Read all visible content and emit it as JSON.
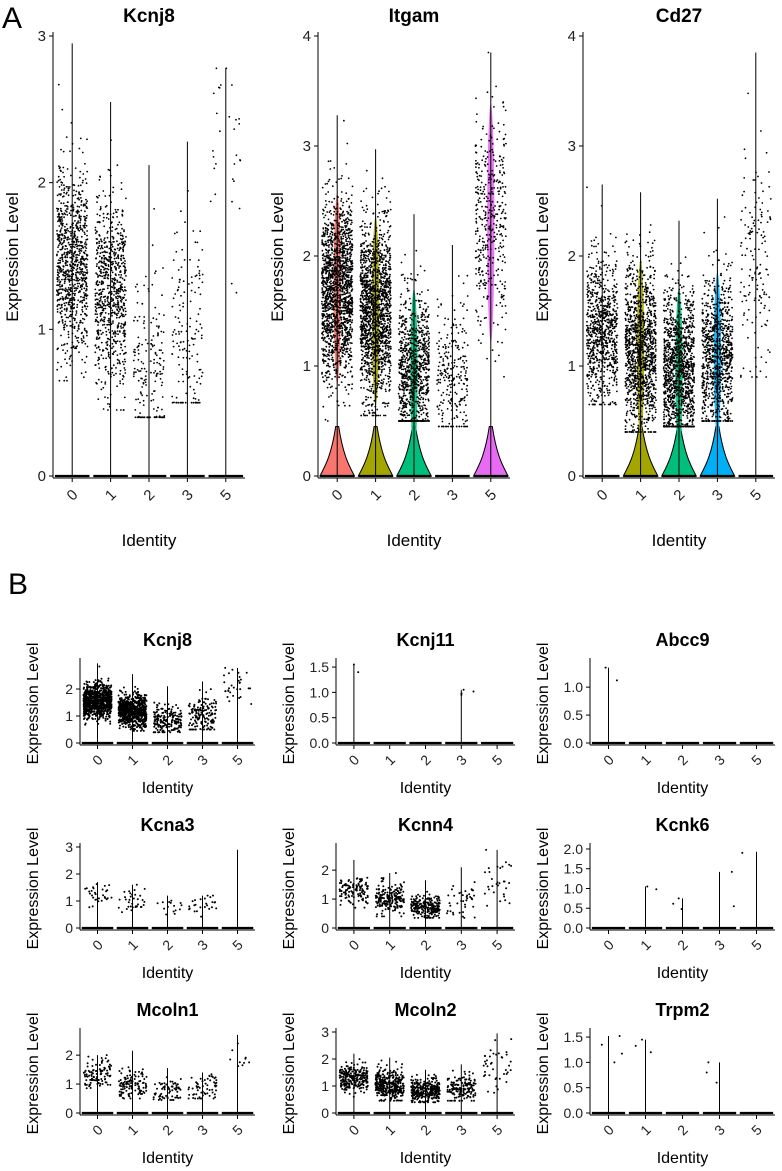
{
  "panels": [
    {
      "label": "A"
    },
    {
      "label": "B"
    }
  ],
  "colors": {
    "identity_0": "#F8766D",
    "identity_1": "#A3A500",
    "identity_2": "#00BF7D",
    "identity_3": "#00B0F6",
    "identity_5": "#E76BF3"
  },
  "chart_data": [
    {
      "panel": "A",
      "type": "violin",
      "title": "Kcnj8",
      "xlabel": "Identity",
      "ylabel": "Expression Level",
      "categories": [
        "0",
        "1",
        "2",
        "3",
        "5"
      ],
      "ylim": [
        0,
        3.0
      ],
      "yticks": [
        0,
        1,
        2,
        3
      ],
      "zero_violin": [
        false,
        false,
        false,
        false,
        false
      ],
      "nonzero_violin": [
        false,
        false,
        false,
        false,
        false
      ],
      "point_center": [
        1.45,
        1.25,
        0.8,
        0.95,
        2.0
      ],
      "point_spread": [
        0.32,
        0.32,
        0.3,
        0.38,
        0.4
      ],
      "point_max": [
        2.95,
        2.55,
        2.12,
        2.28,
        2.78
      ],
      "point_min": [
        0.65,
        0.45,
        0.4,
        0.5,
        1.25
      ],
      "n_points": [
        900,
        750,
        180,
        150,
        30
      ]
    },
    {
      "panel": "A",
      "type": "violin",
      "title": "Itgam",
      "xlabel": "Identity",
      "ylabel": "Expression Level",
      "categories": [
        "0",
        "1",
        "2",
        "3",
        "5"
      ],
      "ylim": [
        0,
        4.0
      ],
      "yticks": [
        0,
        1,
        2,
        3,
        4
      ],
      "zero_violin": [
        true,
        true,
        true,
        false,
        true
      ],
      "nonzero_violin": [
        true,
        true,
        true,
        false,
        true
      ],
      "point_center": [
        1.7,
        1.5,
        0.95,
        0.9,
        2.3
      ],
      "point_spread": [
        0.4,
        0.4,
        0.35,
        0.35,
        0.5
      ],
      "point_max": [
        3.28,
        2.97,
        2.38,
        2.1,
        3.85
      ],
      "point_min": [
        0.5,
        0.55,
        0.5,
        0.45,
        0.9
      ],
      "n_points": [
        1600,
        1500,
        900,
        250,
        400
      ]
    },
    {
      "panel": "A",
      "type": "violin",
      "title": "Cd27",
      "xlabel": "Identity",
      "ylabel": "Expression Level",
      "categories": [
        "0",
        "1",
        "2",
        "3",
        "5"
      ],
      "ylim": [
        0,
        4.0
      ],
      "yticks": [
        0,
        1,
        2,
        3,
        4
      ],
      "zero_violin": [
        false,
        true,
        true,
        true,
        false
      ],
      "nonzero_violin": [
        false,
        true,
        true,
        true,
        false
      ],
      "point_center": [
        1.3,
        1.15,
        0.95,
        1.1,
        1.9
      ],
      "point_spread": [
        0.35,
        0.38,
        0.35,
        0.35,
        0.55
      ],
      "point_max": [
        2.65,
        2.58,
        2.32,
        2.52,
        3.85
      ],
      "point_min": [
        0.65,
        0.4,
        0.45,
        0.5,
        0.9
      ],
      "n_points": [
        800,
        1200,
        1200,
        900,
        150
      ]
    },
    {
      "panel": "B",
      "type": "violin",
      "title": "Kcnj8",
      "xlabel": "Identity",
      "ylabel": "Expression Level",
      "categories": [
        "0",
        "1",
        "2",
        "3",
        "5"
      ],
      "ylim": [
        0,
        3.0
      ],
      "yticks": [
        0,
        1,
        2
      ],
      "zero_violin": [
        false,
        false,
        false,
        false,
        false
      ],
      "nonzero_violin": [
        false,
        false,
        false,
        false,
        false
      ],
      "point_center": [
        1.55,
        1.2,
        0.85,
        1.0,
        2.2
      ],
      "point_spread": [
        0.3,
        0.3,
        0.28,
        0.35,
        0.35
      ],
      "point_max": [
        2.95,
        2.55,
        2.1,
        2.28,
        2.78
      ],
      "point_min": [
        0.6,
        0.45,
        0.4,
        0.5,
        1.25
      ],
      "n_points": [
        900,
        700,
        180,
        150,
        30
      ]
    },
    {
      "panel": "B",
      "type": "violin",
      "title": "Kcnj11",
      "xlabel": "Identity",
      "ylabel": "Expression Level",
      "categories": [
        "0",
        "1",
        "2",
        "3",
        "5"
      ],
      "ylim": [
        0,
        1.6
      ],
      "yticks": [
        0.0,
        0.5,
        1.0,
        1.5
      ],
      "zero_violin": [
        false,
        false,
        false,
        false,
        false
      ],
      "nonzero_violin": [
        false,
        false,
        false,
        false,
        false
      ],
      "point_center": [
        1.5,
        0,
        0,
        1.0,
        0
      ],
      "point_spread": [
        0.08,
        0,
        0,
        0.05,
        0
      ],
      "point_max": [
        1.55,
        0,
        0,
        1.05,
        0
      ],
      "point_min": [
        1.4,
        0,
        0,
        0.95,
        0
      ],
      "n_points": [
        2,
        0,
        0,
        4,
        0
      ]
    },
    {
      "panel": "B",
      "type": "violin",
      "title": "Abcc9",
      "xlabel": "Identity",
      "ylabel": "Expression Level",
      "categories": [
        "0",
        "1",
        "2",
        "3",
        "5"
      ],
      "ylim": [
        0,
        1.45
      ],
      "yticks": [
        0.0,
        0.5,
        1.0
      ],
      "zero_violin": [
        false,
        false,
        false,
        false,
        false
      ],
      "nonzero_violin": [
        false,
        false,
        false,
        false,
        false
      ],
      "point_center": [
        1.25,
        0,
        0,
        0,
        0
      ],
      "point_spread": [
        0.1,
        0,
        0,
        0,
        0
      ],
      "point_max": [
        1.35,
        0,
        0,
        0,
        0
      ],
      "point_min": [
        1.12,
        0,
        0,
        0,
        0
      ],
      "n_points": [
        2,
        0,
        0,
        0,
        0
      ]
    },
    {
      "panel": "B",
      "type": "violin",
      "title": "Kcna3",
      "xlabel": "Identity",
      "ylabel": "Expression Level",
      "categories": [
        "0",
        "1",
        "2",
        "3",
        "5"
      ],
      "ylim": [
        0,
        3.0
      ],
      "yticks": [
        0,
        1,
        2,
        3
      ],
      "zero_violin": [
        false,
        false,
        false,
        false,
        false
      ],
      "nonzero_violin": [
        false,
        false,
        false,
        false,
        false
      ],
      "point_center": [
        1.2,
        1.0,
        0.75,
        0.85,
        0
      ],
      "point_spread": [
        0.25,
        0.25,
        0.2,
        0.25,
        0
      ],
      "point_max": [
        1.7,
        1.6,
        1.2,
        1.2,
        2.9
      ],
      "point_min": [
        0.6,
        0.45,
        0.5,
        0.4,
        0
      ],
      "n_points": [
        30,
        35,
        15,
        25,
        0
      ]
    },
    {
      "panel": "B",
      "type": "violin",
      "title": "Kcnn4",
      "xlabel": "Identity",
      "ylabel": "Expression Level",
      "categories": [
        "0",
        "1",
        "2",
        "3",
        "5"
      ],
      "ylim": [
        0,
        2.8
      ],
      "yticks": [
        0,
        1,
        2
      ],
      "zero_violin": [
        false,
        false,
        false,
        false,
        false
      ],
      "nonzero_violin": [
        false,
        false,
        false,
        false,
        false
      ],
      "point_center": [
        1.3,
        1.0,
        0.75,
        0.9,
        1.7
      ],
      "point_spread": [
        0.25,
        0.25,
        0.2,
        0.35,
        0.45
      ],
      "point_max": [
        2.35,
        1.9,
        1.65,
        2.1,
        2.7
      ],
      "point_min": [
        0.7,
        0.4,
        0.35,
        0.35,
        0.7
      ],
      "n_points": [
        120,
        200,
        220,
        40,
        30
      ]
    },
    {
      "panel": "B",
      "type": "violin",
      "title": "Kcnk6",
      "xlabel": "Identity",
      "ylabel": "Expression Level",
      "categories": [
        "0",
        "1",
        "2",
        "3",
        "5"
      ],
      "ylim": [
        0,
        2.05
      ],
      "yticks": [
        0.0,
        0.5,
        1.0,
        1.5,
        2.0
      ],
      "zero_violin": [
        false,
        false,
        false,
        false,
        false
      ],
      "nonzero_violin": [
        false,
        false,
        false,
        false,
        false
      ],
      "point_center": [
        0,
        1.0,
        0.6,
        1.0,
        1.9
      ],
      "point_spread": [
        0,
        0.02,
        0.15,
        0.4,
        0.02
      ],
      "point_max": [
        0,
        1.05,
        0.75,
        1.42,
        1.93
      ],
      "point_min": [
        0,
        0.98,
        0.48,
        0.55,
        1.9
      ],
      "n_points": [
        0,
        2,
        3,
        2,
        1
      ]
    },
    {
      "panel": "B",
      "type": "violin",
      "title": "Mcoln1",
      "xlabel": "Identity",
      "ylabel": "Expression Level",
      "categories": [
        "0",
        "1",
        "2",
        "3",
        "5"
      ],
      "ylim": [
        0,
        2.8
      ],
      "yticks": [
        0,
        1,
        2
      ],
      "zero_violin": [
        false,
        false,
        false,
        false,
        false
      ],
      "nonzero_violin": [
        false,
        false,
        false,
        false,
        false
      ],
      "point_center": [
        1.35,
        1.0,
        0.75,
        0.9,
        1.7
      ],
      "point_spread": [
        0.25,
        0.25,
        0.2,
        0.25,
        0.4
      ],
      "point_max": [
        2.0,
        2.15,
        1.55,
        1.4,
        2.7
      ],
      "point_min": [
        0.7,
        0.5,
        0.45,
        0.5,
        0.9
      ],
      "n_points": [
        100,
        120,
        70,
        60,
        10
      ]
    },
    {
      "panel": "B",
      "type": "violin",
      "title": "Mcoln2",
      "xlabel": "Identity",
      "ylabel": "Expression Level",
      "categories": [
        "0",
        "1",
        "2",
        "3",
        "5"
      ],
      "ylim": [
        0,
        3.0
      ],
      "yticks": [
        0,
        1,
        2,
        3
      ],
      "zero_violin": [
        false,
        false,
        false,
        false,
        false
      ],
      "nonzero_violin": [
        false,
        false,
        false,
        false,
        false
      ],
      "point_center": [
        1.3,
        1.05,
        0.8,
        0.9,
        1.7
      ],
      "point_spread": [
        0.25,
        0.28,
        0.22,
        0.28,
        0.45
      ],
      "point_max": [
        2.2,
        2.05,
        1.6,
        1.8,
        2.95
      ],
      "point_min": [
        0.6,
        0.45,
        0.4,
        0.45,
        0.75
      ],
      "n_points": [
        250,
        350,
        300,
        150,
        40
      ]
    },
    {
      "panel": "B",
      "type": "violin",
      "title": "Trpm2",
      "xlabel": "Identity",
      "ylabel": "Expression Level",
      "categories": [
        "0",
        "1",
        "2",
        "3",
        "5"
      ],
      "ylim": [
        0,
        1.6
      ],
      "yticks": [
        0.0,
        0.5,
        1.0,
        1.5
      ],
      "zero_violin": [
        false,
        false,
        false,
        false,
        false
      ],
      "nonzero_violin": [
        false,
        false,
        false,
        false,
        false
      ],
      "point_center": [
        1.35,
        1.3,
        0,
        0.8,
        0
      ],
      "point_spread": [
        0.2,
        0.1,
        0,
        0.2,
        0
      ],
      "point_max": [
        1.52,
        1.45,
        0,
        1.0,
        0
      ],
      "point_min": [
        1.0,
        1.2,
        0,
        0.6,
        0
      ],
      "n_points": [
        4,
        3,
        0,
        3,
        0
      ]
    }
  ]
}
